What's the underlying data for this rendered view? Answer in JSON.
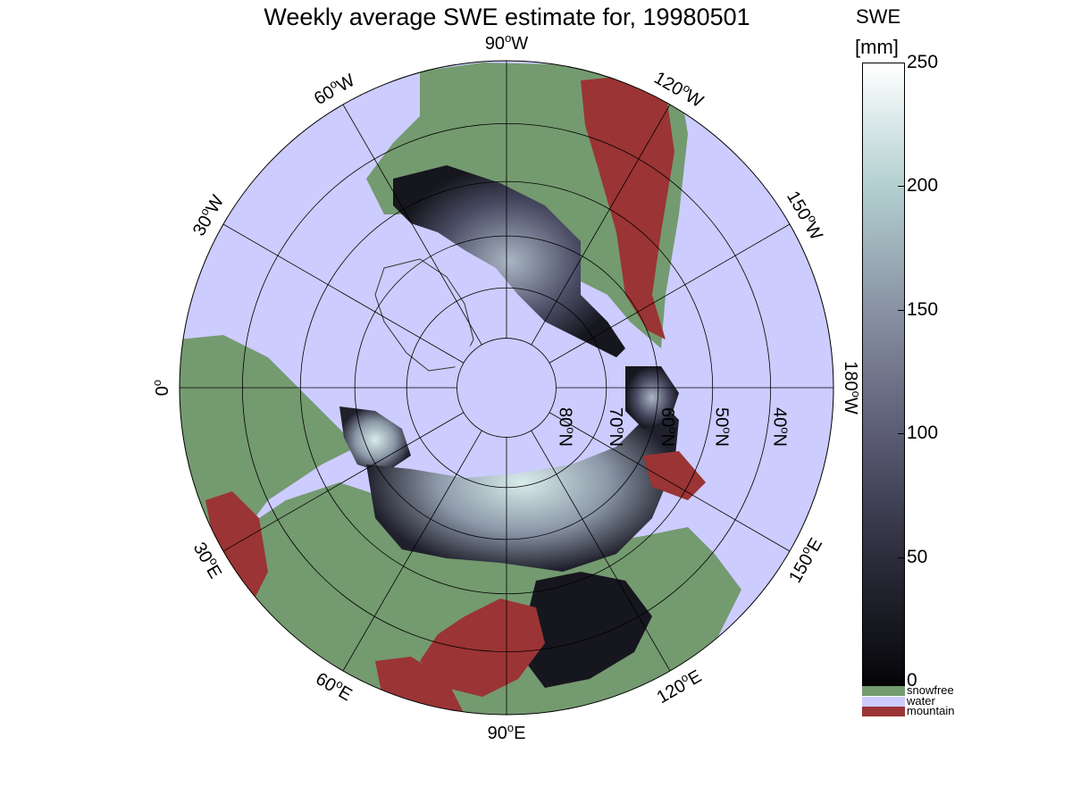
{
  "title": "Weekly average SWE estimate for, 19980501",
  "colorbar": {
    "title_line1": "SWE",
    "title_line2": "[mm]",
    "ticks": [
      "250",
      "200",
      "150",
      "100",
      "50",
      "0"
    ],
    "range": [
      0,
      250
    ],
    "gradient": [
      "#050508",
      "#2b2b3a",
      "#5a5a74",
      "#8891a2",
      "#b2cfd0",
      "#ffffff"
    ]
  },
  "legend": [
    {
      "label": "snowfree",
      "color": "#749a70"
    },
    {
      "label": "water",
      "color": "#ccccff"
    },
    {
      "label": "mountain",
      "color": "#9b3434"
    }
  ],
  "map": {
    "projection": "north polar stereographic",
    "longitude_labels": [
      {
        "sup": "o",
        "text": "90",
        "hem": "W",
        "name": "lon-90w"
      },
      {
        "sup": "o",
        "text": "60",
        "hem": "W",
        "name": "lon-60w"
      },
      {
        "sup": "o",
        "text": "120",
        "hem": "W",
        "name": "lon-120w"
      },
      {
        "sup": "o",
        "text": "30",
        "hem": "W",
        "name": "lon-30w"
      },
      {
        "sup": "o",
        "text": "150",
        "hem": "W",
        "name": "lon-150w"
      },
      {
        "sup": "o",
        "text": "0",
        "hem": "",
        "name": "lon-0"
      },
      {
        "sup": "o",
        "text": "180",
        "hem": "W",
        "name": "lon-180w"
      },
      {
        "sup": "o",
        "text": "30",
        "hem": "E",
        "name": "lon-30e"
      },
      {
        "sup": "o",
        "text": "150",
        "hem": "E",
        "name": "lon-150e"
      },
      {
        "sup": "o",
        "text": "60",
        "hem": "E",
        "name": "lon-60e"
      },
      {
        "sup": "o",
        "text": "120",
        "hem": "E",
        "name": "lon-120e"
      },
      {
        "sup": "o",
        "text": "90",
        "hem": "E",
        "name": "lon-90e"
      }
    ],
    "latitude_labels": [
      {
        "sup": "o",
        "text": "80",
        "hem": "N"
      },
      {
        "sup": "o",
        "text": "70",
        "hem": "N"
      },
      {
        "sup": "o",
        "text": "60",
        "hem": "N"
      },
      {
        "sup": "o",
        "text": "50",
        "hem": "N"
      },
      {
        "sup": "o",
        "text": "40",
        "hem": "N"
      }
    ],
    "colors": {
      "water": "#ccccff",
      "snowfree": "#749a70",
      "mountain": "#9b3434",
      "snow_dark": "#16161e",
      "snow_mid": "#5d5f78",
      "snow_light": "#cfe3e2",
      "graticule": "#000000"
    }
  }
}
